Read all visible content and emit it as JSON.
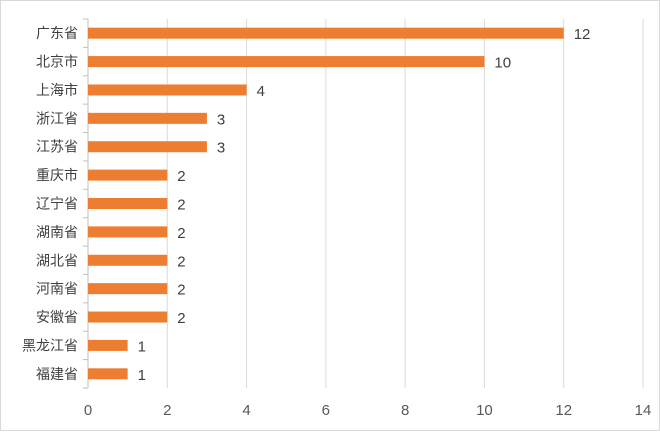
{
  "chart_data": {
    "type": "bar",
    "orientation": "horizontal",
    "categories": [
      "广东省",
      "北京市",
      "上海市",
      "浙江省",
      "江苏省",
      "重庆市",
      "辽宁省",
      "湖南省",
      "湖北省",
      "河南省",
      "安徽省",
      "黑龙江省",
      "福建省"
    ],
    "values": [
      12,
      10,
      4,
      3,
      3,
      2,
      2,
      2,
      2,
      2,
      2,
      1,
      1
    ],
    "xlim": [
      0,
      14
    ],
    "xticks": [
      0,
      2,
      4,
      6,
      8,
      10,
      12,
      14
    ],
    "bar_color": "#ED7D31",
    "grid": true,
    "data_labels": true
  }
}
